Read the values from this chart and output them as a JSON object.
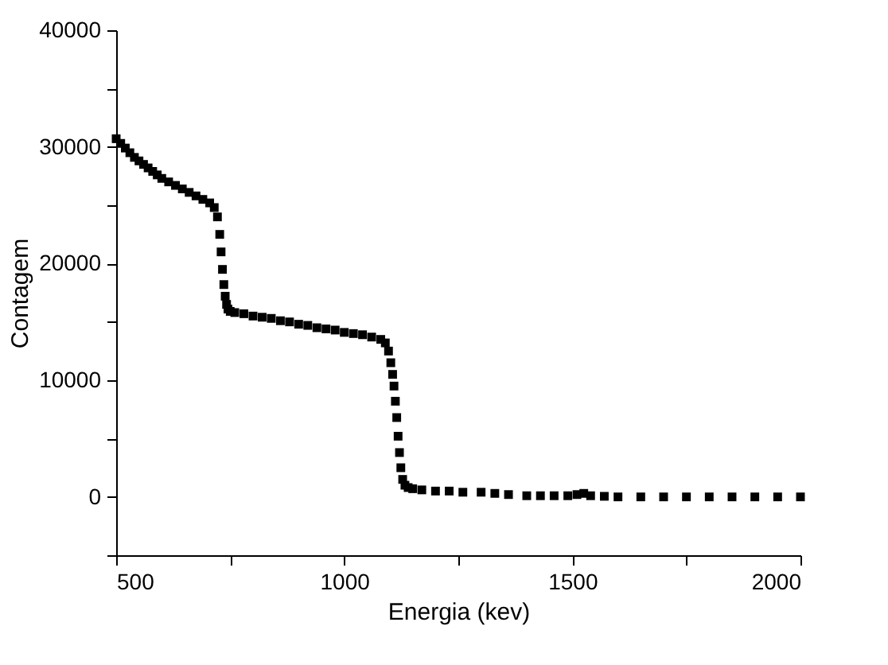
{
  "chart_data": {
    "type": "scatter",
    "xlabel": "Energia (kev)",
    "ylabel": "Contagem",
    "marker": "square",
    "xlim": [
      500,
      2000
    ],
    "ylim": [
      -5000,
      40000
    ],
    "xticks": [
      500,
      {
        "value": 750,
        "label": null
      },
      1000,
      {
        "value": 1250,
        "label": null
      },
      1500,
      {
        "value": 1750,
        "label": null
      },
      2000
    ],
    "yticks": [
      {
        "value": -5000,
        "label": null
      },
      0,
      {
        "value": 5000,
        "label": null
      },
      10000,
      {
        "value": 15000,
        "label": null
      },
      20000,
      {
        "value": 25000,
        "label": null
      },
      30000,
      {
        "value": 35000,
        "label": null
      },
      40000
    ],
    "grid": false,
    "x": [
      500,
      510,
      520,
      530,
      540,
      550,
      560,
      570,
      580,
      590,
      600,
      615,
      630,
      645,
      660,
      675,
      690,
      705,
      715,
      722,
      727,
      730,
      733,
      736,
      739,
      742,
      745,
      750,
      760,
      780,
      800,
      820,
      840,
      860,
      880,
      900,
      920,
      940,
      960,
      980,
      1000,
      1020,
      1040,
      1060,
      1080,
      1090,
      1097,
      1102,
      1106,
      1109,
      1112,
      1115,
      1118,
      1121,
      1124,
      1128,
      1133,
      1140,
      1150,
      1170,
      1200,
      1230,
      1260,
      1300,
      1330,
      1360,
      1400,
      1430,
      1460,
      1490,
      1510,
      1525,
      1540,
      1570,
      1600,
      1650,
      1700,
      1750,
      1800,
      1850,
      1900,
      1950,
      2000
    ],
    "series": [
      {
        "color": "#000000",
        "values": [
          30700,
          30300,
          29900,
          29500,
          29100,
          28800,
          28500,
          28200,
          27900,
          27600,
          27300,
          27000,
          26700,
          26400,
          26100,
          25800,
          25500,
          25200,
          24800,
          24000,
          22500,
          21000,
          19500,
          18200,
          17200,
          16500,
          16100,
          15900,
          15800,
          15700,
          15500,
          15400,
          15300,
          15100,
          15000,
          14800,
          14700,
          14500,
          14400,
          14300,
          14100,
          14000,
          13900,
          13700,
          13500,
          13200,
          12500,
          11500,
          10500,
          9500,
          8200,
          6800,
          5200,
          3800,
          2500,
          1500,
          1000,
          800,
          700,
          600,
          500,
          500,
          400,
          400,
          300,
          200,
          100,
          100,
          100,
          100,
          200,
          300,
          100,
          50,
          0,
          0,
          0,
          0,
          0,
          0,
          0,
          0,
          0
        ]
      }
    ]
  }
}
